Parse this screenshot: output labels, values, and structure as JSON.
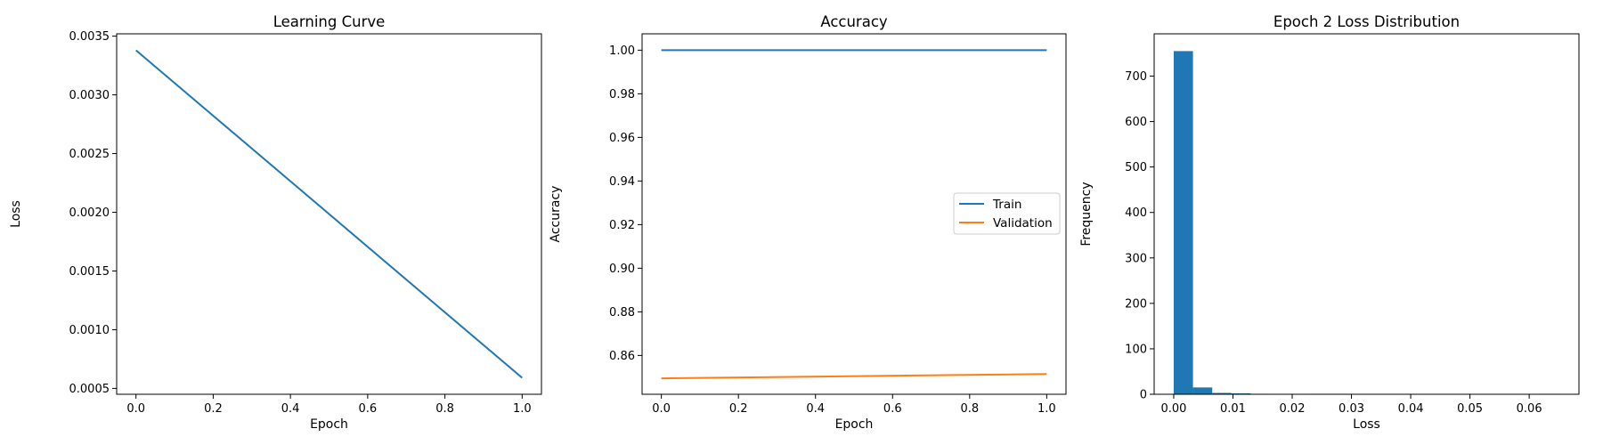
{
  "chart_data": [
    {
      "type": "line",
      "title": "Learning Curve",
      "xlabel": "Epoch",
      "ylabel": "Loss",
      "xlim": [
        -0.05,
        1.05
      ],
      "ylim": [
        0.00045,
        0.00352
      ],
      "xticks": [
        "0.0",
        "0.2",
        "0.4",
        "0.6",
        "0.8",
        "1.0"
      ],
      "yticks": [
        "0.0005",
        "0.0010",
        "0.0015",
        "0.0020",
        "0.0025",
        "0.0030",
        "0.0035"
      ],
      "grid": false,
      "series": [
        {
          "x": [
            0,
            1
          ],
          "values": [
            0.00338,
            0.00059
          ],
          "color": "#1f77b4"
        }
      ]
    },
    {
      "type": "line",
      "title": "Accuracy",
      "xlabel": "Epoch",
      "ylabel": "Accuracy",
      "xlim": [
        -0.05,
        1.05
      ],
      "ylim": [
        0.8422,
        1.0075
      ],
      "xticks": [
        "0.0",
        "0.2",
        "0.4",
        "0.6",
        "0.8",
        "1.0"
      ],
      "yticks": [
        "0.86",
        "0.88",
        "0.90",
        "0.92",
        "0.94",
        "0.96",
        "0.98",
        "1.00"
      ],
      "grid": false,
      "legend": "center-right",
      "series": [
        {
          "name": "Train",
          "x": [
            0,
            1
          ],
          "values": [
            1.0,
            1.0
          ],
          "color": "#1f77b4"
        },
        {
          "name": "Validation",
          "x": [
            0,
            1
          ],
          "values": [
            0.8495,
            0.8515
          ],
          "color": "#ff7f0e"
        }
      ]
    },
    {
      "type": "bar",
      "subtype": "histogram",
      "title": "Epoch 2 Loss Distribution",
      "xlabel": "Loss",
      "ylabel": "Frequency",
      "xlim": [
        -0.0033,
        0.0684
      ],
      "ylim": [
        0,
        793
      ],
      "xticks": [
        "0.00",
        "0.01",
        "0.02",
        "0.03",
        "0.04",
        "0.05",
        "0.06"
      ],
      "yticks": [
        "0",
        "100",
        "200",
        "300",
        "400",
        "500",
        "600",
        "700"
      ],
      "grid": false,
      "bin_edges": [
        0,
        0.00325,
        0.0065,
        0.00975,
        0.013,
        0.01625,
        0.0195,
        0.02275,
        0.026,
        0.02925,
        0.0325,
        0.03575,
        0.039,
        0.04225,
        0.0455,
        0.04875,
        0.052,
        0.05525,
        0.0585,
        0.06175,
        0.065
      ],
      "values": [
        755,
        15,
        3,
        2,
        1,
        0,
        0,
        1,
        1,
        0,
        0,
        0,
        0,
        0,
        0,
        0,
        0,
        0,
        0,
        1
      ],
      "color": "#1f77b4"
    }
  ]
}
